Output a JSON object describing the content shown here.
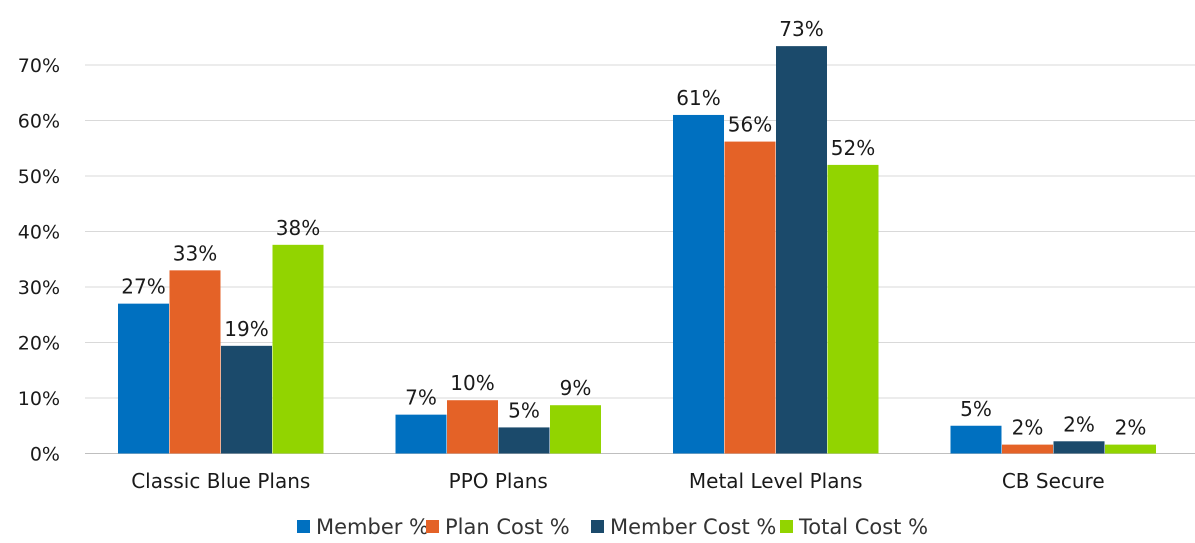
{
  "chart_data": {
    "type": "bar",
    "categories": [
      "Classic Blue Plans",
      "PPO Plans",
      "Metal Level Plans",
      "CB Secure"
    ],
    "series": [
      {
        "name": "Member %",
        "color": "#0070C0",
        "values": [
          27,
          7,
          61,
          5
        ],
        "labels": [
          "27%",
          "7%",
          "61%",
          "5%"
        ]
      },
      {
        "name": "Plan Cost %",
        "color": "#E46227",
        "values": [
          33,
          9.6,
          56.2,
          1.6
        ],
        "labels": [
          "33%",
          "10%",
          "56%",
          "2%"
        ]
      },
      {
        "name": "Member Cost %",
        "color": "#1B4A6B",
        "values": [
          19.4,
          4.7,
          73.4,
          2.2
        ],
        "labels": [
          "19%",
          "5%",
          "73%",
          "2%"
        ]
      },
      {
        "name": "Total Cost %",
        "color": "#92D400",
        "values": [
          37.6,
          8.7,
          52,
          1.6
        ],
        "labels": [
          "38%",
          "9%",
          "52%",
          "2%"
        ]
      }
    ],
    "ylim": [
      0,
      70
    ],
    "ytick_step": 10,
    "ytick_labels": [
      "0%",
      "10%",
      "20%",
      "30%",
      "40%",
      "50%",
      "60%",
      "70%"
    ],
    "grid": true,
    "legend": "bottom",
    "title": "",
    "xlabel": "",
    "ylabel": ""
  }
}
